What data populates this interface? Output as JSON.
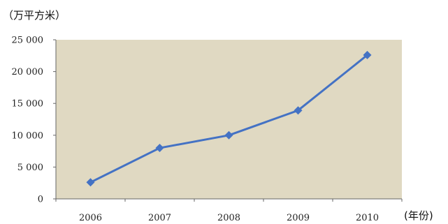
{
  "chart_data": {
    "type": "line",
    "title": "",
    "ylabel": "（万平方米）",
    "xlabel": "(年份)",
    "categories": [
      "2006",
      "2007",
      "2008",
      "2009",
      "2010"
    ],
    "series": [
      {
        "values": [
          2600,
          8000,
          10000,
          13900,
          22600
        ]
      }
    ],
    "ylim": [
      0,
      25000
    ],
    "yticks": [
      0,
      5000,
      10000,
      15000,
      20000,
      25000
    ],
    "ytick_labels": [
      "0",
      "5 000",
      "10 000",
      "15 000",
      "20 000",
      "25 000"
    ],
    "grid": false,
    "legend": "none",
    "colors": {
      "plot_background": "#e0d9c2",
      "line": "#4472c4",
      "marker": "#4472c4",
      "axis": "#666666",
      "text": "#222222"
    }
  }
}
